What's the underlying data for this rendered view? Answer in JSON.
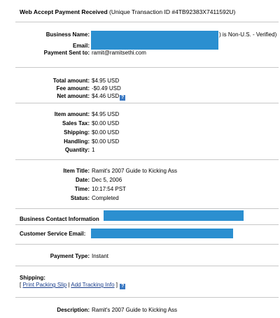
{
  "header": {
    "title": "Web Accept Payment Received",
    "transaction": "(Unique Transaction ID #4TB92383X7411592U)"
  },
  "recipient": {
    "business_name_label": "Business Name:",
    "business_status_suffix": ") is Non-U.S. - Verified)",
    "email_label": "Email:",
    "sent_to_label": "Payment Sent to:",
    "sent_to_value": "ramit@ramitsethi.com"
  },
  "totals": {
    "total_label": "Total amount:",
    "total_value": "$4.95 USD",
    "fee_label": "Fee amount:",
    "fee_value": "-$0.49 USD",
    "net_label": "Net amount:",
    "net_value": "$4.46 USD",
    "help_glyph": "?"
  },
  "breakdown": {
    "item_label": "Item amount:",
    "item_value": "$4.95 USD",
    "tax_label": "Sales Tax:",
    "tax_value": "$0.00 USD",
    "shipping_label": "Shipping:",
    "shipping_value": "$0.00 USD",
    "handling_label": "Handling:",
    "handling_value": "$0.00 USD",
    "quantity_label": "Quantity:",
    "quantity_value": "1"
  },
  "item": {
    "title_label": "Item Title:",
    "title_value": "Ramit's 2007 Guide to Kicking Ass",
    "date_label": "Date:",
    "date_value": "Dec 5, 2006",
    "time_label": "Time:",
    "time_value": "10:17:54 PST",
    "status_label": "Status:",
    "status_value": "Completed"
  },
  "contact": {
    "business_contact_label": "Business Contact Information",
    "customer_service_label": "Customer Service Email:"
  },
  "payment": {
    "type_label": "Payment Type:",
    "type_value": "Instant"
  },
  "shipping": {
    "label": "Shipping:",
    "bracket_open": "[",
    "packing_slip_link": "Print Packing Slip",
    "divider": "|",
    "tracking_link": "Add Tracking Info",
    "bracket_close": "]",
    "help_glyph": "?"
  },
  "description": {
    "label": "Description:",
    "value": "Ramit's 2007 Guide to Kicking Ass"
  },
  "colors": {
    "redaction": "#2b8fd0",
    "separator": "#c8c8c8",
    "link": "#1a3e8c"
  }
}
